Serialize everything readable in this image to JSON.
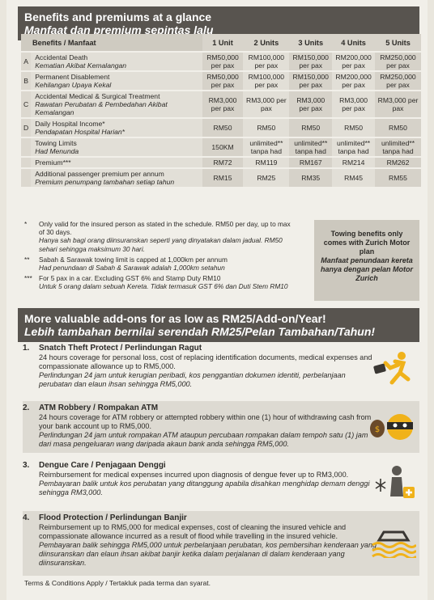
{
  "banner1": {
    "title": "Benefits and premiums at a glance",
    "subtitle": "Manfaat dan premium sepintas lalu"
  },
  "table": {
    "header": {
      "label": "Benefits / Manfaat",
      "units": [
        "1 Unit",
        "2 Units",
        "3 Units",
        "4 Units",
        "5 Units"
      ]
    },
    "rows": [
      {
        "letter": "A",
        "en": "Accidental Death",
        "ms": "Kematian Akibat Kemalangan",
        "values": [
          "RM50,000 per pax",
          "RM100,000 per pax",
          "RM150,000 per pax",
          "RM200,000 per pax",
          "RM250,000 per pax"
        ]
      },
      {
        "letter": "B",
        "en": "Permanent Disablement",
        "ms": "Kehilangan Upaya Kekal",
        "values": [
          "RM50,000 per pax",
          "RM100,000 per pax",
          "RM150,000 per pax",
          "RM200,000 per pax",
          "RM250,000 per pax"
        ]
      },
      {
        "letter": "C",
        "en": "Accidental Medical & Surgical Treatment",
        "ms": "Rawatan Perubatan & Pembedahan Akibat Kemalangan",
        "values": [
          "RM3,000 per pax",
          "RM3,000 per pax",
          "RM3,000 per pax",
          "RM3,000 per pax",
          "RM3,000 per pax"
        ]
      },
      {
        "letter": "D",
        "en": "Daily Hospital Income*",
        "ms": "Pendapatan Hospital Harian*",
        "values": [
          "RM50",
          "RM50",
          "RM50",
          "RM50",
          "RM50"
        ]
      },
      {
        "letter": "",
        "en": "Towing Limits",
        "ms": "Had Menunda",
        "values": [
          "150KM",
          "unlimited** tanpa had",
          "unlimited** tanpa had",
          "unlimited** tanpa had",
          "unlimited** tanpa had"
        ]
      },
      {
        "letter": "",
        "en": "Premium***",
        "ms": "",
        "values": [
          "RM72",
          "RM119",
          "RM167",
          "RM214",
          "RM262"
        ]
      },
      {
        "letter": "",
        "en": "Additional passenger premium per annum",
        "ms": "Premium penumpang tambahan setiap tahun",
        "values": [
          "RM15",
          "RM25",
          "RM35",
          "RM45",
          "RM55"
        ]
      }
    ]
  },
  "notes": [
    {
      "mark": "*",
      "en": "Only valid for the insured person as stated in the schedule. RM50 per day, up to max of 30 days.",
      "ms": "Hanya sah bagi orang diinsuranskan seperti yang dinyatakan dalam jadual. RM50 sehari sehingga maksimum 30 hari."
    },
    {
      "mark": "**",
      "en": "Sabah & Sarawak towing limit is capped at 1,000km per annum",
      "ms": "Had penundaan di Sabah & Sarawak adalah 1,000km setahun"
    },
    {
      "mark": "***",
      "en": "For 5 pax in a car. Excluding GST 6% and Stamp Duty RM10",
      "ms": "Untuk 5 orang dalam sebuah Kereta. Tidak termasuk GST 6% dan Duti Stem RM10"
    }
  ],
  "towing_box": {
    "en": "Towing benefits only comes with Zurich Motor plan",
    "ms": "Manfaat penundaan kereta hanya dengan pelan Motor Zurich"
  },
  "banner2": {
    "title": "More valuable add-ons for as low as RM25/Add-on/Year!",
    "subtitle": "Lebih tambahan bernilai serendah RM25/Pelan Tambahan/Tahun!"
  },
  "addons": [
    {
      "num": "1.",
      "title": "Snatch Theft Protect / Perlindungan Ragut",
      "en": "24 hours coverage for personal loss, cost of replacing identification documents, medical expenses and compassionate allowance up to RM5,000.",
      "ms": "Perlindungan 24 jam untuk kerugian peribadi, kos penggantian dokumen identiti, perbelanjaan perubatan dan elaun ihsan sehingga RM5,000.",
      "icon": "running-thief-icon"
    },
    {
      "num": "2.",
      "title": "ATM Robbery / Rompakan ATM",
      "en": "24 hours coverage for ATM robbery or attempted robbery within one (1) hour of withdrawing cash from your bank account up to RM5,000.",
      "ms": "Perlindungan 24 jam untuk rompakan ATM ataupun percubaan rompakan dalam tempoh satu (1) jam dari masa pengeluaran wang daripada akaun bank anda sehingga RM5,000.",
      "icon": "masked-robber-icon"
    },
    {
      "num": "3.",
      "title": "Dengue Care / Penjagaan Denggi",
      "en": "Reimbursement for medical expenses incurred upon diagnosis of dengue fever up to RM3,000.",
      "ms": "Pembayaran balik untuk kos perubatan yang ditanggung apabila disahkan menghidap demam denggi sehingga RM3,000.",
      "icon": "mosquito-patient-icon"
    },
    {
      "num": "4.",
      "title": "Flood Protection / Perlindungan Banjir",
      "en": "Reimbursement up to RM5,000 for medical expenses, cost of cleaning the insured vehicle and compassionate allowance incurred as a result of flood while travelling in the insured vehicle.",
      "ms": "Pembayaran balik sehingga RM5,000 untuk perbelanjaan perubatan, kos pembersihan kenderaan yang diinsuranskan dan elaun ihsan akibat banjir ketika dalam perjalanan di dalam kenderaan yang diinsuranskan.",
      "icon": "flooded-car-icon"
    }
  ],
  "terms": "Terms & Conditions Apply / Tertakluk pada terma dan syarat."
}
